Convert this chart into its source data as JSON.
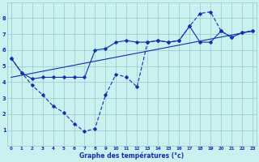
{
  "xlabel": "Graphe des températures (°c)",
  "background_color": "#caf0f0",
  "line_color": "#1030b0",
  "grid_color": "#90cccc",
  "xlim_min": -0.4,
  "xlim_max": 23.4,
  "ylim_min": 0.0,
  "ylim_max": 9.0,
  "xticks": [
    0,
    1,
    2,
    3,
    4,
    5,
    6,
    7,
    8,
    9,
    10,
    11,
    12,
    13,
    14,
    15,
    16,
    17,
    18,
    19,
    20,
    21,
    22,
    23
  ],
  "yticks": [
    1,
    2,
    3,
    4,
    5,
    6,
    7,
    8
  ],
  "curve_dashed_x": [
    0,
    1,
    2,
    3,
    4,
    5,
    6,
    7,
    8,
    9,
    10,
    11,
    12,
    13,
    14,
    15,
    16,
    17,
    18,
    19,
    20,
    21,
    22,
    23
  ],
  "curve_dashed_y": [
    5.5,
    4.6,
    3.8,
    3.2,
    2.5,
    2.1,
    1.4,
    0.9,
    1.1,
    3.2,
    4.5,
    4.3,
    3.7,
    6.5,
    6.6,
    6.5,
    6.6,
    7.5,
    8.3,
    8.4,
    7.2,
    6.8,
    7.1,
    7.2
  ],
  "curve_solid_markers_x": [
    0,
    1,
    2,
    3,
    4,
    5,
    6,
    7,
    8,
    9,
    10,
    11,
    12,
    13,
    14,
    15,
    16,
    17,
    18,
    19,
    20,
    21,
    22,
    23
  ],
  "curve_solid_markers_y": [
    5.5,
    4.6,
    4.2,
    4.3,
    4.3,
    4.3,
    4.3,
    4.3,
    6.0,
    6.1,
    6.5,
    6.6,
    6.5,
    6.5,
    6.6,
    6.5,
    6.6,
    7.5,
    6.5,
    6.5,
    7.2,
    6.8,
    7.1,
    7.2
  ],
  "curve_line_x": [
    0,
    23
  ],
  "curve_line_y": [
    4.3,
    7.2
  ]
}
